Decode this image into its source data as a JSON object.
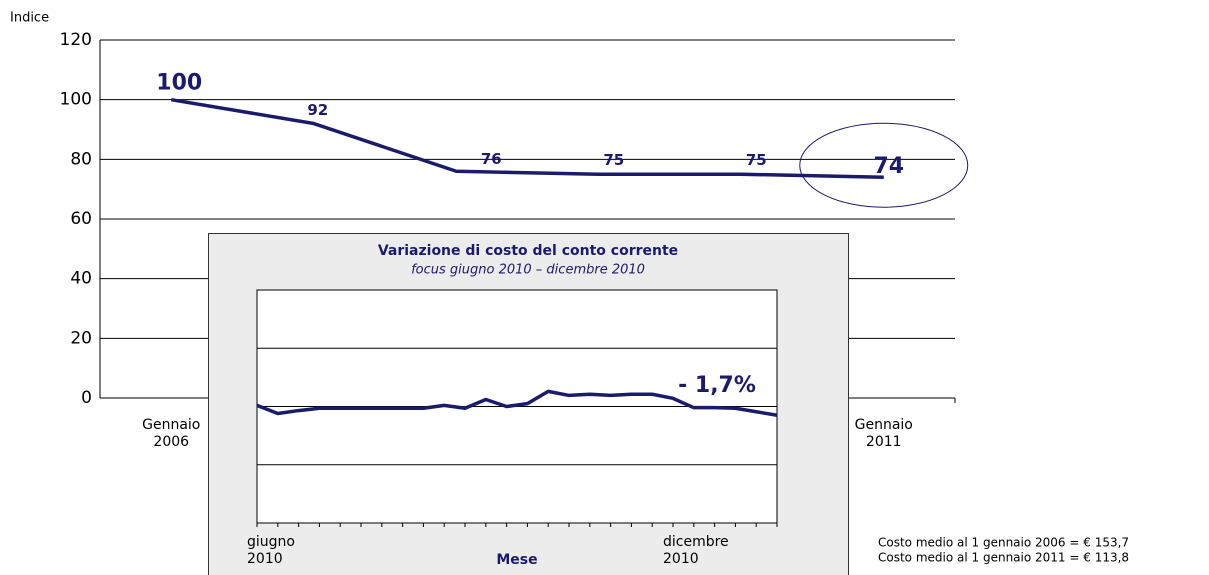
{
  "chart_data": [
    {
      "type": "line",
      "y_label": "Indice",
      "categories": [
        "Gennaio\n2006",
        null,
        null,
        null,
        null,
        "Gennaio\n2011"
      ],
      "series": [
        {
          "color": "#1b1b6b",
          "values": [
            100,
            92,
            76,
            75,
            75,
            74
          ]
        }
      ],
      "ylim": [
        0,
        120
      ],
      "yticks": [
        0,
        20,
        40,
        60,
        80,
        100,
        120
      ],
      "grid": true,
      "notes": [
        "Costo medio al 1 gennaio 2006 = € 153,7",
        "Costo medio al 1 gennaio 2011 = € 113,8"
      ]
    },
    {
      "type": "line",
      "title": "Variazione di costo del conto corrente",
      "subtitle": "focus giugno 2010 – dicembre 2010",
      "x_label": "Mese",
      "categories": [
        "giugno\n2010",
        null,
        null,
        null,
        null,
        null,
        null,
        null,
        null,
        null,
        null,
        null,
        null,
        null,
        null,
        null,
        null,
        null,
        null,
        null,
        "dicembre\n2010",
        null,
        null,
        null,
        null,
        null
      ],
      "series": [
        {
          "color": "#1b1b6b",
          "values": [
            100.2,
            98.8,
            99.3,
            99.7,
            99.7,
            99.7,
            99.7,
            99.7,
            99.7,
            100.2,
            99.7,
            101.2,
            100.0,
            100.5,
            102.6,
            101.9,
            102.1,
            101.9,
            102.1,
            102.1,
            101.4,
            99.8,
            99.8,
            99.7,
            99.1,
            98.5
          ]
        }
      ],
      "ylim": [
        80,
        120
      ],
      "yticks": [
        90,
        100,
        110
      ],
      "grid": true,
      "annotation": "- 1,7%"
    }
  ]
}
